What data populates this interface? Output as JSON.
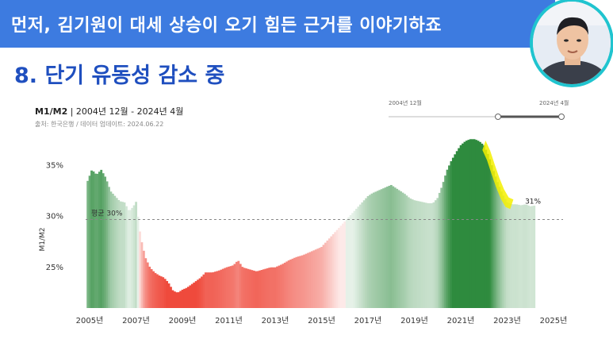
{
  "banner": {
    "text": "먼저, 김기원이 대세 상승이 오기 힘든 근거를 이야기하죠"
  },
  "section": {
    "title": "8. 단기 유동성 감소 중"
  },
  "chart_header": {
    "series_name": "M1/M2",
    "period": "2004년 12월 - 2024년 4월",
    "source": "출처: 한국은행 / 데이터 업데이트: 2024.06.22"
  },
  "range_selector": {
    "start_label": "2004년 12월",
    "end_label": "2024년 4월"
  },
  "colors": {
    "banner": "#3d7be0",
    "title": "#1f4fbf",
    "above_avg": "#2e8b3e",
    "below_avg": "#ef4a3c",
    "highlight": "#f4f000"
  },
  "chart_data": {
    "type": "bar",
    "title": "M1/M2",
    "ylabel": "M1/M2",
    "ylim": [
      21,
      37
    ],
    "y_ticks": [
      "25%",
      "30%",
      "35%"
    ],
    "y_tick_values": [
      25,
      30,
      35
    ],
    "x_ticks": [
      "2005년",
      "2007년",
      "2009년",
      "2011년",
      "2013년",
      "2015년",
      "2017년",
      "2019년",
      "2021년",
      "2023년",
      "2025년"
    ],
    "x_tick_values": [
      2005,
      2007,
      2009,
      2011,
      2013,
      2015,
      2017,
      2019,
      2021,
      2023,
      2025
    ],
    "average": {
      "label": "평균 30%",
      "value": 29.7
    },
    "end_label": "31%",
    "series": [
      {
        "points": [
          [
            2004.92,
            33.5
          ],
          [
            2005.1,
            34.6
          ],
          [
            2005.3,
            34.1
          ],
          [
            2005.5,
            34.6
          ],
          [
            2005.7,
            33.8
          ],
          [
            2005.9,
            32.5
          ],
          [
            2006.1,
            32.0
          ],
          [
            2006.3,
            31.5
          ],
          [
            2006.5,
            31.4
          ],
          [
            2006.7,
            30.5
          ],
          [
            2006.9,
            31.0
          ],
          [
            2007.0,
            31.5
          ],
          [
            2007.2,
            28.0
          ],
          [
            2007.4,
            26.0
          ],
          [
            2007.6,
            25.0
          ],
          [
            2007.8,
            24.5
          ],
          [
            2008.0,
            24.2
          ],
          [
            2008.2,
            24.0
          ],
          [
            2008.4,
            23.5
          ],
          [
            2008.6,
            22.7
          ],
          [
            2008.8,
            22.5
          ],
          [
            2009.0,
            22.8
          ],
          [
            2009.2,
            23.0
          ],
          [
            2009.5,
            23.5
          ],
          [
            2009.8,
            24.0
          ],
          [
            2010.0,
            24.5
          ],
          [
            2010.3,
            24.5
          ],
          [
            2010.6,
            24.7
          ],
          [
            2010.9,
            25.0
          ],
          [
            2011.2,
            25.2
          ],
          [
            2011.4,
            25.7
          ],
          [
            2011.6,
            25.0
          ],
          [
            2011.9,
            24.8
          ],
          [
            2012.2,
            24.6
          ],
          [
            2012.5,
            24.8
          ],
          [
            2012.8,
            25.0
          ],
          [
            2013.0,
            25.0
          ],
          [
            2013.3,
            25.3
          ],
          [
            2013.6,
            25.7
          ],
          [
            2013.9,
            26.0
          ],
          [
            2014.2,
            26.2
          ],
          [
            2014.5,
            26.5
          ],
          [
            2014.8,
            26.8
          ],
          [
            2015.0,
            27.0
          ],
          [
            2015.2,
            27.5
          ],
          [
            2015.4,
            28.0
          ],
          [
            2015.6,
            28.5
          ],
          [
            2015.8,
            29.0
          ],
          [
            2016.0,
            29.5
          ],
          [
            2016.2,
            30.0
          ],
          [
            2016.4,
            30.5
          ],
          [
            2016.6,
            31.0
          ],
          [
            2016.8,
            31.5
          ],
          [
            2017.0,
            32.0
          ],
          [
            2017.2,
            32.3
          ],
          [
            2017.4,
            32.5
          ],
          [
            2017.6,
            32.7
          ],
          [
            2017.8,
            32.9
          ],
          [
            2018.0,
            33.1
          ],
          [
            2018.2,
            32.8
          ],
          [
            2018.4,
            32.5
          ],
          [
            2018.6,
            32.2
          ],
          [
            2018.8,
            31.8
          ],
          [
            2019.0,
            31.6
          ],
          [
            2019.2,
            31.5
          ],
          [
            2019.4,
            31.4
          ],
          [
            2019.6,
            31.3
          ],
          [
            2019.8,
            31.3
          ],
          [
            2020.0,
            31.8
          ],
          [
            2020.2,
            33.0
          ],
          [
            2020.4,
            34.5
          ],
          [
            2020.6,
            35.5
          ],
          [
            2020.8,
            36.3
          ],
          [
            2021.0,
            37.0
          ],
          [
            2021.2,
            37.4
          ],
          [
            2021.4,
            37.6
          ],
          [
            2021.6,
            37.6
          ],
          [
            2021.8,
            37.4
          ],
          [
            2022.0,
            37.0
          ],
          [
            2022.2,
            36.0
          ],
          [
            2022.4,
            34.6
          ],
          [
            2022.6,
            33.3
          ],
          [
            2022.8,
            32.2
          ],
          [
            2023.0,
            31.4
          ],
          [
            2023.2,
            31.2
          ],
          [
            2023.4,
            31.2
          ],
          [
            2023.6,
            31.1
          ],
          [
            2023.8,
            31.2
          ],
          [
            2024.0,
            31.0
          ],
          [
            2024.25,
            31.1
          ]
        ]
      }
    ]
  }
}
